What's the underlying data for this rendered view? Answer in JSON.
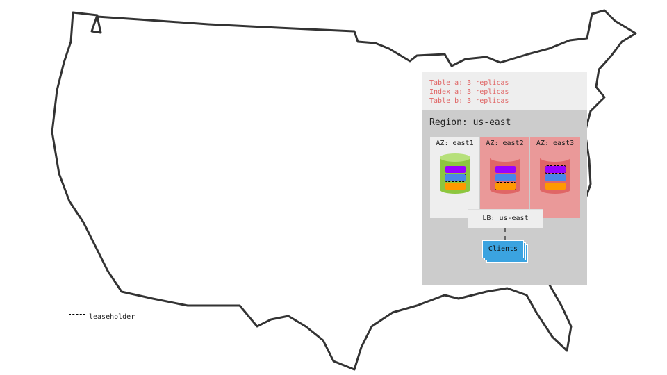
{
  "header_notes": [
    "Table a: 3 replicas",
    "Index a: 3 replicas",
    "Table b: 3 replicas"
  ],
  "region": {
    "label": "Region: us-east"
  },
  "azs": [
    {
      "label": "AZ: east1",
      "status": "healthy",
      "bg": "#eeeeee",
      "cylinder": "#8dc63f",
      "leaseholder_bar": "blue"
    },
    {
      "label": "AZ: east2",
      "status": "failed",
      "bg": "#ea9999",
      "cylinder": "#e06666",
      "leaseholder_bar": "orange"
    },
    {
      "label": "AZ: east3",
      "status": "failed",
      "bg": "#ea9999",
      "cylinder": "#e06666",
      "leaseholder_bar": "purple"
    }
  ],
  "colors": {
    "purple": "#9900ff",
    "blue": "#4a86e8",
    "orange": "#ff9900",
    "clients": "#3ba3e0"
  },
  "lb": {
    "label": "LB: us-east"
  },
  "clients": {
    "label": "Clients"
  },
  "legend": {
    "label": "leaseholder"
  }
}
